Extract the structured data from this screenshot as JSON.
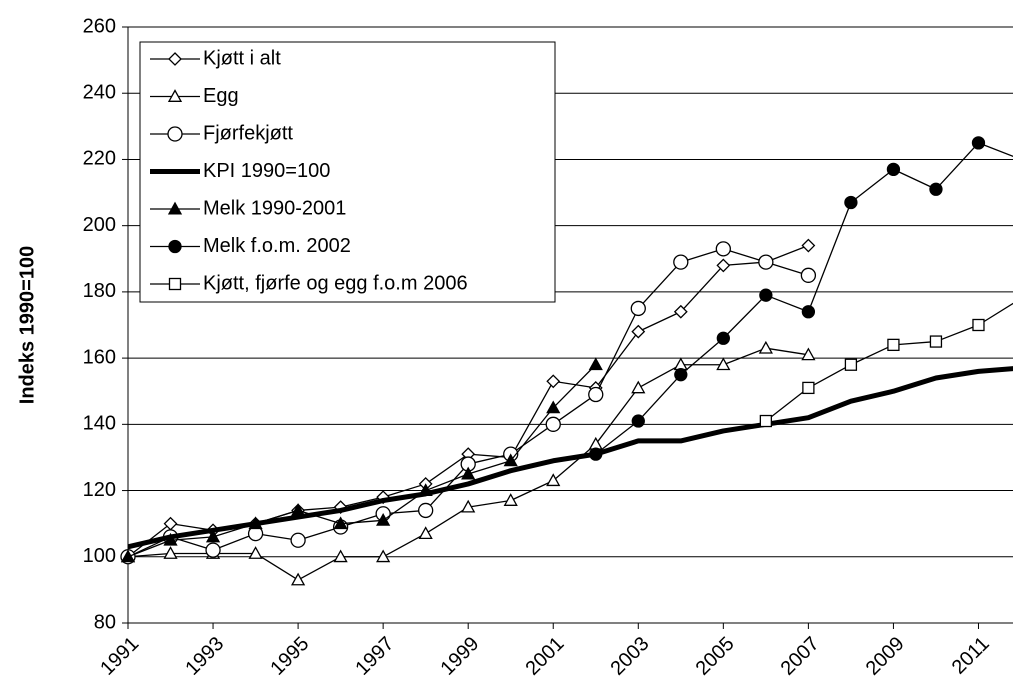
{
  "chart_data": {
    "type": "line",
    "y_label": "Indeks 1990=100",
    "x": [
      1991,
      1992,
      1993,
      1994,
      1995,
      1996,
      1997,
      1998,
      1999,
      2000,
      2001,
      2002,
      2003,
      2004,
      2005,
      2006,
      2007,
      2008,
      2009,
      2010,
      2011,
      2012
    ],
    "xlim": [
      1991,
      2012
    ],
    "xticks": [
      1991,
      1993,
      1995,
      1997,
      1999,
      2001,
      2003,
      2005,
      2007,
      2009,
      2011
    ],
    "ylim": [
      80,
      260
    ],
    "yticks": [
      80,
      100,
      120,
      140,
      160,
      180,
      200,
      220,
      240,
      260
    ],
    "grid": true,
    "legend": "upper left",
    "series": [
      {
        "name": "Kjøtt i alt",
        "color": "#000000",
        "marker": "diamond",
        "line_width": 1.3,
        "values": [
          100,
          110,
          108,
          110,
          114,
          115,
          118,
          122,
          131,
          130,
          153,
          151,
          168,
          174,
          188,
          189,
          194,
          null,
          null,
          null,
          null,
          null
        ]
      },
      {
        "name": "Egg",
        "color": "#000000",
        "marker": "triangle",
        "line_width": 1.3,
        "values": [
          100,
          101,
          101,
          101,
          93,
          100,
          100,
          107,
          115,
          117,
          123,
          134,
          151,
          158,
          158,
          163,
          161,
          null,
          null,
          null,
          null,
          null
        ]
      },
      {
        "name": "Fjørfekjøtt",
        "color": "#000000",
        "marker": "circle",
        "line_width": 1.3,
        "values": [
          100,
          106,
          102,
          107,
          105,
          109,
          113,
          114,
          128,
          131,
          140,
          149,
          175,
          189,
          193,
          189,
          185,
          null,
          null,
          null,
          null,
          null
        ]
      },
      {
        "name": "KPI 1990=100",
        "color": "#000000",
        "marker": "none",
        "line_width": 5,
        "values": [
          103,
          106,
          108,
          110,
          112,
          114,
          117,
          119,
          122,
          126,
          129,
          131,
          135,
          135,
          138,
          140,
          142,
          147,
          150,
          154,
          156,
          157
        ]
      },
      {
        "name": "Melk 1990-2001",
        "color": "#000000",
        "marker": "triangle-filled",
        "line_width": 1.3,
        "values": [
          100,
          105,
          106,
          110,
          114,
          110,
          111,
          120,
          125,
          129,
          145,
          158,
          null,
          null,
          null,
          null,
          null,
          null,
          null,
          null,
          null,
          null
        ]
      },
      {
        "name": "Melk f.o.m. 2002",
        "color": "#000000",
        "marker": "circle-filled",
        "line_width": 1.3,
        "values": [
          null,
          null,
          null,
          null,
          null,
          null,
          null,
          null,
          null,
          null,
          null,
          131,
          141,
          155,
          166,
          179,
          174,
          207,
          217,
          211,
          225,
          220
        ]
      },
      {
        "name": "Kjøtt, fjørfe og egg f.o.m 2006",
        "color": "#000000",
        "marker": "square",
        "line_width": 1.3,
        "values": [
          null,
          null,
          null,
          null,
          null,
          null,
          null,
          null,
          null,
          null,
          null,
          null,
          null,
          null,
          null,
          141,
          151,
          158,
          164,
          165,
          170,
          178
        ]
      }
    ]
  }
}
